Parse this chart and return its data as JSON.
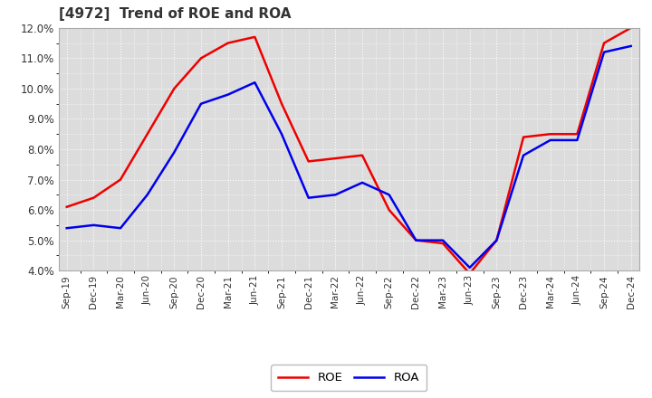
{
  "title": "[4972]  Trend of ROE and ROA",
  "x_labels": [
    "Sep-19",
    "Dec-19",
    "Mar-20",
    "Jun-20",
    "Sep-20",
    "Dec-20",
    "Mar-21",
    "Jun-21",
    "Sep-21",
    "Dec-21",
    "Mar-22",
    "Jun-22",
    "Sep-22",
    "Dec-22",
    "Mar-23",
    "Jun-23",
    "Sep-23",
    "Dec-23",
    "Mar-24",
    "Jun-24",
    "Sep-24",
    "Dec-24"
  ],
  "roe": [
    6.1,
    6.4,
    7.0,
    8.5,
    10.0,
    11.0,
    11.5,
    11.7,
    9.5,
    7.6,
    7.7,
    7.8,
    6.0,
    5.0,
    4.9,
    3.9,
    5.0,
    8.4,
    8.5,
    8.5,
    11.5,
    12.0
  ],
  "roa": [
    5.4,
    5.5,
    5.4,
    6.5,
    7.9,
    9.5,
    9.8,
    10.2,
    8.5,
    6.4,
    6.5,
    6.9,
    6.5,
    5.0,
    5.0,
    4.1,
    5.0,
    7.8,
    8.3,
    8.3,
    11.2,
    11.4
  ],
  "roe_color": "#ee0000",
  "roa_color": "#0000ee",
  "bg_color": "#ffffff",
  "plot_bg_color": "#dcdcdc",
  "ylim": [
    4.0,
    12.0
  ],
  "yticks": [
    4.0,
    5.0,
    6.0,
    7.0,
    8.0,
    9.0,
    10.0,
    11.0,
    12.0
  ],
  "grid_color": "#ffffff",
  "legend_roe": "ROE",
  "legend_roa": "ROA",
  "line_width": 1.8,
  "title_color": "#333333"
}
